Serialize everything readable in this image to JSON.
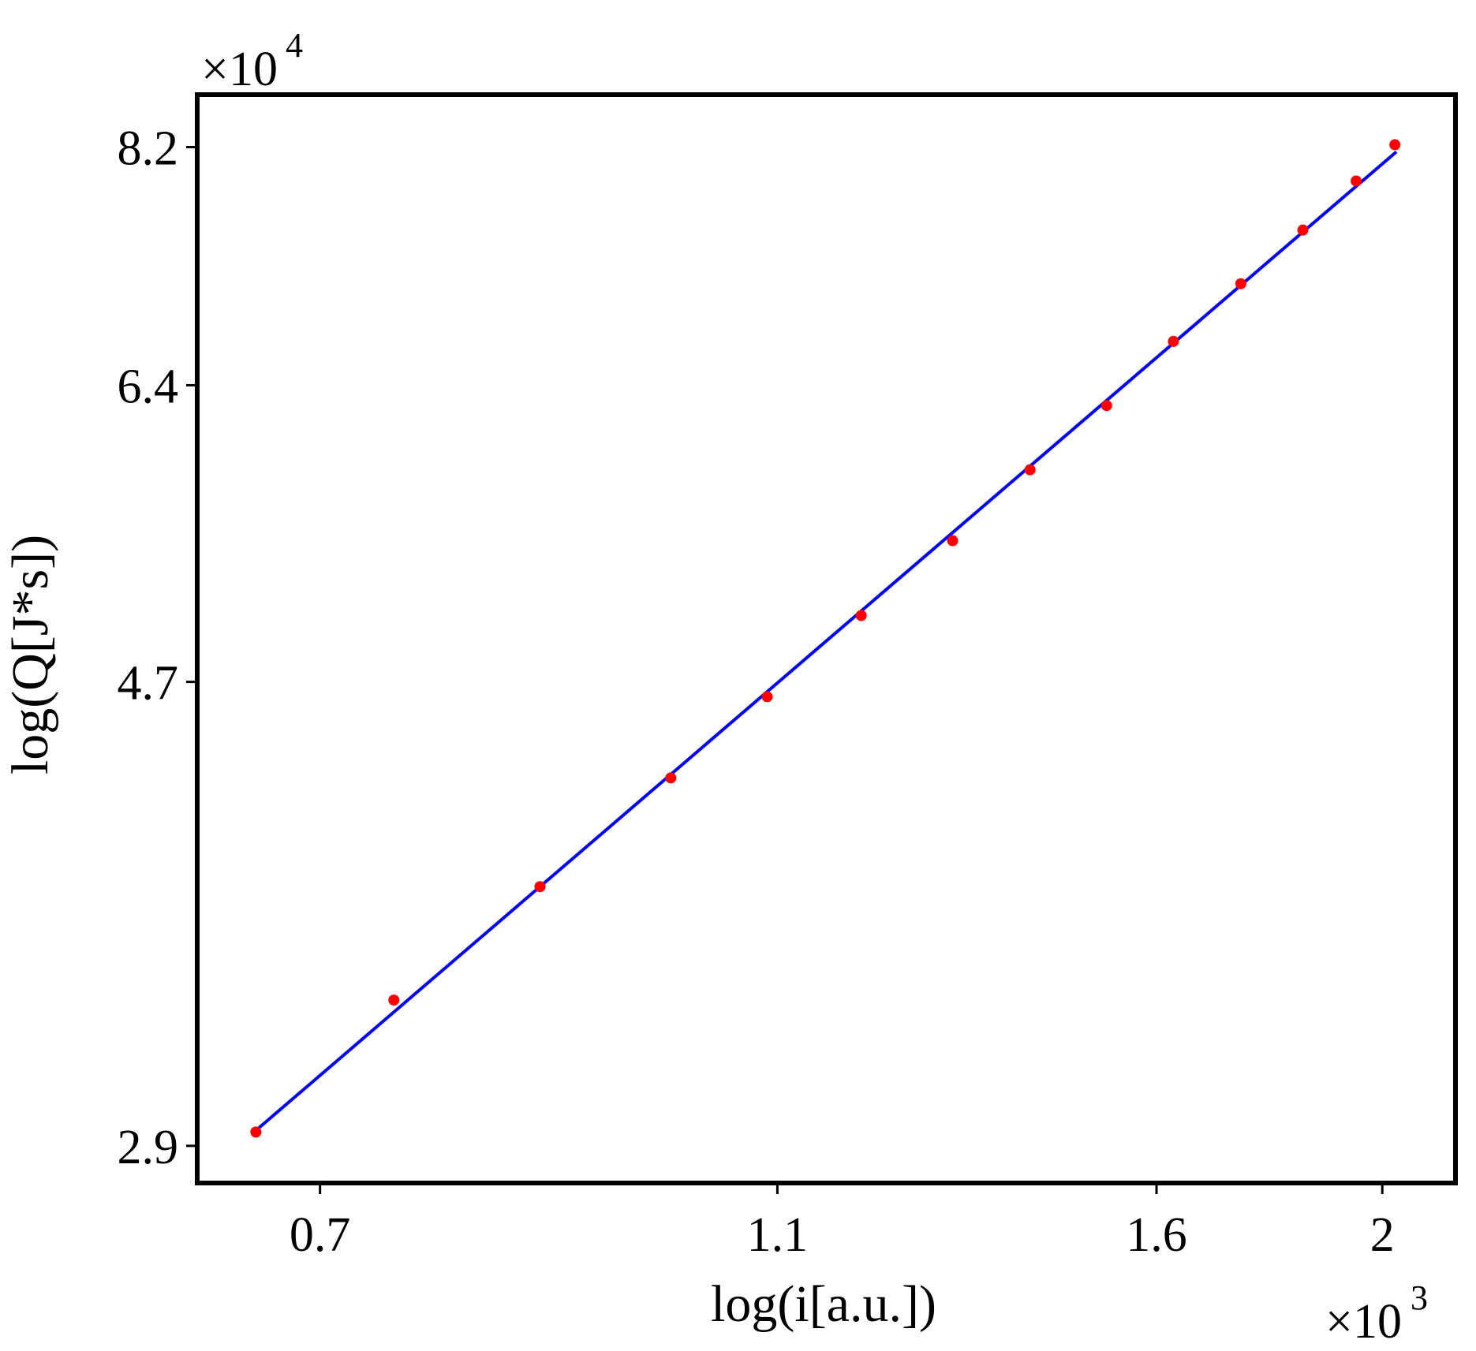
{
  "chart_data": {
    "type": "scatter",
    "xlabel": "log(i[a.u.])",
    "ylabel": "log(Q[J*s])",
    "x_multiplier": "×10",
    "x_exponent": "3",
    "y_multiplier": "×10",
    "y_exponent": "4",
    "xscale": "log",
    "yscale": "log",
    "xlim": [
      0.62,
      2.15
    ],
    "ylim": [
      2.79,
      8.66
    ],
    "xticks": [
      0.7,
      1.1,
      1.6,
      2.0
    ],
    "yticks": [
      2.9,
      4.7,
      6.4,
      8.2
    ],
    "series": [
      {
        "type": "scatter",
        "color": "#ff0000",
        "x": [
          0.657,
          0.753,
          0.87,
          0.99,
          1.089,
          1.195,
          1.308,
          1.412,
          1.523,
          1.627,
          1.739,
          1.849,
          1.949,
          2.025
        ],
        "values": [
          2.942,
          3.375,
          3.798,
          4.253,
          4.628,
          5.036,
          5.444,
          5.861,
          6.266,
          6.699,
          7.113,
          7.522,
          7.916,
          8.22
        ]
      },
      {
        "type": "line",
        "color": "#0000ff",
        "x": [
          0.659,
          2.028
        ],
        "values": [
          2.955,
          8.16
        ]
      }
    ]
  }
}
